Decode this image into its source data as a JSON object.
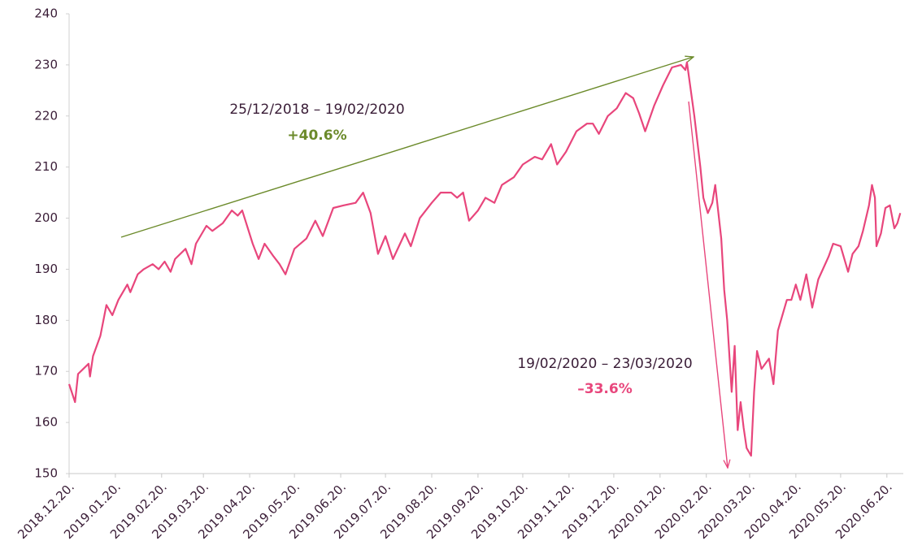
{
  "chart_data": {
    "type": "line",
    "annotations": [
      "25/12/2018 – 19/02/2020",
      "+40.6%",
      "19/02/2020 – 23/03/2020",
      "–33.6%"
    ],
    "x": [
      "2018-12-20",
      "2018-12-24",
      "2018-12-26",
      "2019-01-02",
      "2019-01-03",
      "2019-01-05",
      "2019-01-10",
      "2019-01-14",
      "2019-01-18",
      "2019-01-22",
      "2019-01-28",
      "2019-01-30",
      "2019-02-04",
      "2019-02-08",
      "2019-02-14",
      "2019-02-18",
      "2019-02-22",
      "2019-02-26",
      "2019-03-01",
      "2019-03-08",
      "2019-03-12",
      "2019-03-15",
      "2019-03-22",
      "2019-03-26",
      "2019-04-02",
      "2019-04-08",
      "2019-04-12",
      "2019-04-15",
      "2019-04-22",
      "2019-04-26",
      "2019-04-30",
      "2019-05-06",
      "2019-05-10",
      "2019-05-14",
      "2019-05-20",
      "2019-05-28",
      "2019-06-03",
      "2019-06-08",
      "2019-06-15",
      "2019-06-22",
      "2019-06-30",
      "2019-07-05",
      "2019-07-10",
      "2019-07-15",
      "2019-07-20",
      "2019-07-25",
      "2019-08-02",
      "2019-08-06",
      "2019-08-12",
      "2019-08-20",
      "2019-08-26",
      "2019-09-02",
      "2019-09-06",
      "2019-09-10",
      "2019-09-14",
      "2019-09-20",
      "2019-09-25",
      "2019-10-01",
      "2019-10-06",
      "2019-10-14",
      "2019-10-20",
      "2019-10-28",
      "2019-11-02",
      "2019-11-08",
      "2019-11-12",
      "2019-11-18",
      "2019-11-25",
      "2019-12-02",
      "2019-12-06",
      "2019-12-10",
      "2019-12-16",
      "2019-12-22",
      "2019-12-28",
      "2020-01-02",
      "2020-01-06",
      "2020-01-10",
      "2020-01-16",
      "2020-01-22",
      "2020-01-28",
      "2020-02-03",
      "2020-02-06",
      "2020-02-07",
      "2020-02-12",
      "2020-02-16",
      "2020-02-18",
      "2020-02-21",
      "2020-02-24",
      "2020-02-26",
      "2020-03-01",
      "2020-03-03",
      "2020-03-05",
      "2020-03-08",
      "2020-03-10",
      "2020-03-12",
      "2020-03-14",
      "2020-03-16",
      "2020-03-18",
      "2020-03-21",
      "2020-03-23",
      "2020-03-25",
      "2020-03-28",
      "2020-04-02",
      "2020-04-05",
      "2020-04-08",
      "2020-04-14",
      "2020-04-17",
      "2020-04-20",
      "2020-04-23",
      "2020-04-27",
      "2020-05-01",
      "2020-05-05",
      "2020-05-12",
      "2020-05-15",
      "2020-05-20",
      "2020-05-25",
      "2020-05-28",
      "2020-06-01",
      "2020-06-04",
      "2020-06-08",
      "2020-06-10",
      "2020-06-12",
      "2020-06-13",
      "2020-06-16",
      "2020-06-19",
      "2020-06-22",
      "2020-06-25",
      "2020-06-27",
      "2020-06-29"
    ],
    "values": [
      167.5,
      164,
      169.5,
      171.5,
      169,
      173,
      177,
      183,
      181,
      184,
      187,
      185.5,
      189,
      190,
      191,
      190,
      191.5,
      189.5,
      192,
      194,
      191,
      195,
      198.5,
      197.5,
      199,
      201.5,
      200.5,
      201.5,
      195,
      192,
      195,
      192.5,
      191,
      189,
      194,
      196,
      199.5,
      196.5,
      202,
      202.5,
      203,
      205,
      201,
      193,
      196.5,
      192,
      197,
      194.5,
      200,
      203,
      205,
      205,
      204,
      205,
      199.5,
      201.5,
      204,
      203,
      206.5,
      208,
      210.5,
      212,
      211.5,
      214.5,
      210.5,
      213,
      217,
      218.5,
      218.5,
      216.5,
      220,
      221.5,
      224.5,
      223.5,
      220.5,
      217,
      222,
      226,
      229.5,
      230,
      229,
      230.5,
      220,
      210,
      204,
      201,
      203,
      206.5,
      196,
      186,
      180,
      166,
      175,
      158.5,
      164,
      159,
      155,
      153.5,
      166,
      174,
      170.5,
      172.5,
      167.5,
      178,
      184,
      184,
      187,
      184,
      189,
      182.5,
      188,
      192.5,
      195,
      194.5,
      189.5,
      193,
      194.5,
      197.5,
      202.5,
      206.5,
      204,
      194.5,
      197,
      202,
      202.5,
      198,
      199,
      201
    ],
    "color": "#e8467c",
    "xlim": [
      "2018-12-20",
      "2020-07-01"
    ],
    "xticks": [
      {
        "value": "2018-12-20",
        "label": "2018.12.20."
      },
      {
        "value": "2019-01-20",
        "label": "2019.01.20."
      },
      {
        "value": "2019-02-20",
        "label": "2019.02.20."
      },
      {
        "value": "2019-03-20",
        "label": "2019.03.20."
      },
      {
        "value": "2019-04-20",
        "label": "2019.04.20."
      },
      {
        "value": "2019-05-20",
        "label": "2019.05.20."
      },
      {
        "value": "2019-06-20",
        "label": "2019.06.20."
      },
      {
        "value": "2019-07-20",
        "label": "2019.07.20."
      },
      {
        "value": "2019-08-20",
        "label": "2019.08.20."
      },
      {
        "value": "2019-09-20",
        "label": "2019.09.20."
      },
      {
        "value": "2019-10-20",
        "label": "2019.10.20."
      },
      {
        "value": "2019-11-20",
        "label": "2019.11.20."
      },
      {
        "value": "2019-12-20",
        "label": "2019.12.20."
      },
      {
        "value": "2020-01-20",
        "label": "2020.01.20."
      },
      {
        "value": "2020-02-20",
        "label": "2020.02.20."
      },
      {
        "value": "2020-03-20",
        "label": "2020.03.20."
      },
      {
        "value": "2020-04-20",
        "label": "2020.04.20."
      },
      {
        "value": "2020-05-20",
        "label": "2020.05.20."
      },
      {
        "value": "2020-06-20",
        "label": "2020.06.20."
      }
    ],
    "ylim": [
      150,
      240
    ],
    "yticks": [
      150,
      160,
      170,
      180,
      190,
      200,
      210,
      220,
      230,
      240
    ]
  }
}
